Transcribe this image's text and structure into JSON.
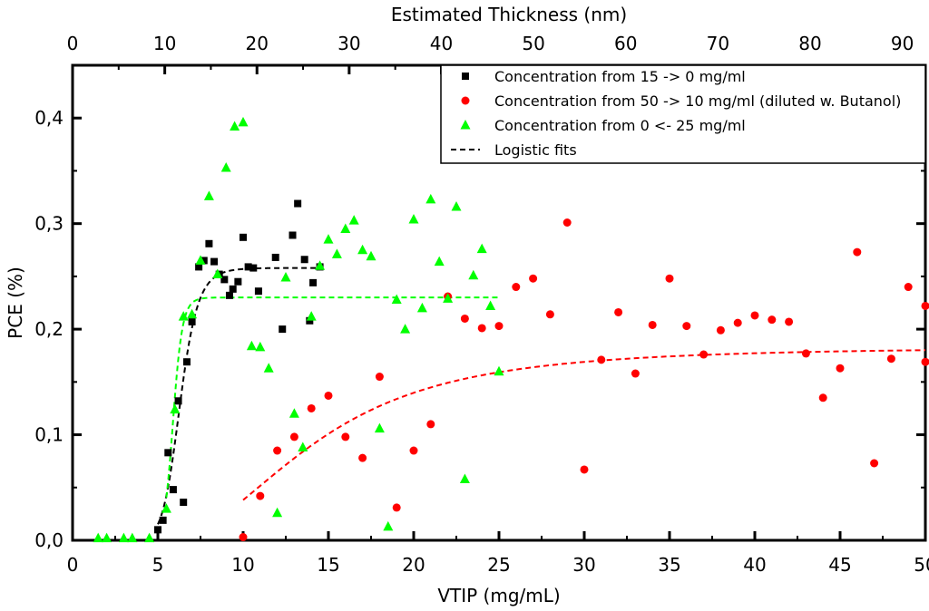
{
  "chart_data": {
    "type": "scatter",
    "title": "",
    "xlabel": "VTIP (mg/mL)",
    "ylabel": "PCE (%)",
    "x2label": "Estimated Thickness (nm)",
    "xlim": [
      0,
      50
    ],
    "ylim": [
      0,
      0.45
    ],
    "x2lim": [
      0,
      92.5
    ],
    "xticks": [
      0,
      5,
      10,
      15,
      20,
      25,
      30,
      35,
      40,
      45,
      50
    ],
    "yticks": [
      0.0,
      0.1,
      0.2,
      0.3,
      0.4
    ],
    "ytick_labels": [
      "0,0",
      "0,1",
      "0,2",
      "0,3",
      "0,4"
    ],
    "x2ticks": [
      0,
      10,
      20,
      30,
      40,
      50,
      60,
      70,
      80,
      90
    ],
    "legend_position": "top-right",
    "legend": [
      {
        "label": "Concentration from 15 -> 0 mg/ml",
        "marker": "square",
        "color": "#000000"
      },
      {
        "label": "Concentration from 50 -> 10 mg/ml (diluted w. Butanol)",
        "marker": "circle",
        "color": "#ff0000"
      },
      {
        "label": "Concentration from 0 <- 25 mg/ml",
        "marker": "triangle",
        "color": "#00ff00"
      },
      {
        "label": "Logistic fits",
        "marker": "dashed-line",
        "color": "#000000"
      }
    ],
    "series": [
      {
        "name": "Concentration from 15 -> 0 mg/ml",
        "marker": "square",
        "color": "#000000",
        "points": [
          [
            5.0,
            0.01
          ],
          [
            5.3,
            0.019
          ],
          [
            5.6,
            0.083
          ],
          [
            5.9,
            0.048
          ],
          [
            6.2,
            0.132
          ],
          [
            6.5,
            0.036
          ],
          [
            6.7,
            0.169
          ],
          [
            7.0,
            0.207
          ],
          [
            7.4,
            0.259
          ],
          [
            7.7,
            0.265
          ],
          [
            8.0,
            0.281
          ],
          [
            8.3,
            0.264
          ],
          [
            8.6,
            0.252
          ],
          [
            8.9,
            0.247
          ],
          [
            9.2,
            0.232
          ],
          [
            9.4,
            0.238
          ],
          [
            9.7,
            0.245
          ],
          [
            10.0,
            0.287
          ],
          [
            10.3,
            0.259
          ],
          [
            10.6,
            0.258
          ],
          [
            10.9,
            0.236
          ],
          [
            11.9,
            0.268
          ],
          [
            12.3,
            0.2
          ],
          [
            12.9,
            0.289
          ],
          [
            13.2,
            0.319
          ],
          [
            13.6,
            0.266
          ],
          [
            13.9,
            0.208
          ],
          [
            14.1,
            0.244
          ],
          [
            14.5,
            0.259
          ]
        ]
      },
      {
        "name": "Concentration from 50 -> 10 mg/ml (diluted w. Butanol)",
        "marker": "circle",
        "color": "#ff0000",
        "points": [
          [
            10.0,
            0.003
          ],
          [
            11.0,
            0.042
          ],
          [
            12.0,
            0.085
          ],
          [
            13.0,
            0.098
          ],
          [
            14.0,
            0.125
          ],
          [
            15.0,
            0.137
          ],
          [
            16.0,
            0.098
          ],
          [
            17.0,
            0.078
          ],
          [
            18.0,
            0.155
          ],
          [
            19.0,
            0.031
          ],
          [
            20.0,
            0.085
          ],
          [
            21.0,
            0.11
          ],
          [
            22.0,
            0.231
          ],
          [
            23.0,
            0.21
          ],
          [
            24.0,
            0.201
          ],
          [
            25.0,
            0.203
          ],
          [
            26.0,
            0.24
          ],
          [
            27.0,
            0.248
          ],
          [
            28.0,
            0.214
          ],
          [
            29.0,
            0.301
          ],
          [
            30.0,
            0.067
          ],
          [
            31.0,
            0.171
          ],
          [
            32.0,
            0.216
          ],
          [
            33.0,
            0.158
          ],
          [
            34.0,
            0.204
          ],
          [
            35.0,
            0.248
          ],
          [
            36.0,
            0.203
          ],
          [
            37.0,
            0.176
          ],
          [
            38.0,
            0.199
          ],
          [
            39.0,
            0.206
          ],
          [
            40.0,
            0.213
          ],
          [
            41.0,
            0.209
          ],
          [
            42.0,
            0.207
          ],
          [
            43.0,
            0.177
          ],
          [
            44.0,
            0.135
          ],
          [
            45.0,
            0.163
          ],
          [
            46.0,
            0.273
          ],
          [
            47.0,
            0.073
          ],
          [
            48.0,
            0.172
          ],
          [
            49.0,
            0.24
          ],
          [
            50.0,
            0.222
          ],
          [
            50.0,
            0.169
          ]
        ]
      },
      {
        "name": "Concentration from 0 <- 25 mg/ml",
        "marker": "triangle",
        "color": "#00ff00",
        "points": [
          [
            1.5,
            0.002
          ],
          [
            2.0,
            0.002
          ],
          [
            3.0,
            0.002
          ],
          [
            3.5,
            0.002
          ],
          [
            4.5,
            0.002
          ],
          [
            5.5,
            0.03
          ],
          [
            6.0,
            0.124
          ],
          [
            6.5,
            0.212
          ],
          [
            7.0,
            0.214
          ],
          [
            7.5,
            0.265
          ],
          [
            8.0,
            0.326
          ],
          [
            8.5,
            0.252
          ],
          [
            9.0,
            0.353
          ],
          [
            9.5,
            0.392
          ],
          [
            10.0,
            0.396
          ],
          [
            10.5,
            0.184
          ],
          [
            11.0,
            0.183
          ],
          [
            11.5,
            0.163
          ],
          [
            12.0,
            0.026
          ],
          [
            12.5,
            0.249
          ],
          [
            13.0,
            0.12
          ],
          [
            13.5,
            0.088
          ],
          [
            14.0,
            0.212
          ],
          [
            14.5,
            0.26
          ],
          [
            15.0,
            0.285
          ],
          [
            15.5,
            0.271
          ],
          [
            16.0,
            0.295
          ],
          [
            16.5,
            0.303
          ],
          [
            17.0,
            0.275
          ],
          [
            17.5,
            0.269
          ],
          [
            18.0,
            0.106
          ],
          [
            18.5,
            0.013
          ],
          [
            19.0,
            0.228
          ],
          [
            19.5,
            0.2
          ],
          [
            20.0,
            0.304
          ],
          [
            20.5,
            0.22
          ],
          [
            21.0,
            0.323
          ],
          [
            21.5,
            0.264
          ],
          [
            22.0,
            0.229
          ],
          [
            22.5,
            0.316
          ],
          [
            23.0,
            0.058
          ],
          [
            23.5,
            0.251
          ],
          [
            24.0,
            0.276
          ],
          [
            24.5,
            0.222
          ],
          [
            25.0,
            0.16
          ]
        ]
      }
    ],
    "fits": [
      {
        "name": "Logistic fit (black)",
        "color": "#000000",
        "x_range": [
          5.0,
          14.5
        ],
        "A1": 0.0,
        "A2": 0.258,
        "x0": 6.3,
        "p": 12
      },
      {
        "name": "Logistic fit (green)",
        "color": "#00ff00",
        "x_range": [
          5.5,
          25.0
        ],
        "A1": 0.0,
        "A2": 0.23,
        "x0": 5.9,
        "p": 22
      },
      {
        "name": "Logistic fit (red)",
        "color": "#ff0000",
        "x_range": [
          10.0,
          50.0
        ],
        "A1": -0.02,
        "A2": 0.183,
        "x0": 13.3,
        "p": 3.2
      }
    ]
  }
}
